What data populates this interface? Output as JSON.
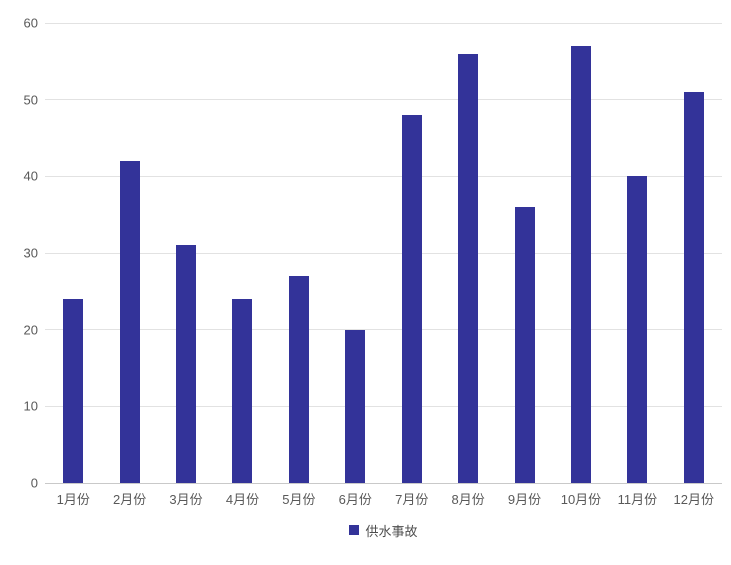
{
  "chart_data": {
    "type": "bar",
    "categories": [
      "1月份",
      "2月份",
      "3月份",
      "4月份",
      "5月份",
      "6月份",
      "7月份",
      "8月份",
      "9月份",
      "10月份",
      "11月份",
      "12月份"
    ],
    "series": [
      {
        "name": "供水事故",
        "values": [
          24,
          42,
          31,
          24,
          27,
          20,
          48,
          56,
          36,
          57,
          40,
          51
        ]
      }
    ],
    "ylim": [
      0,
      60
    ],
    "yticks": [
      0,
      10,
      20,
      30,
      40,
      50,
      60
    ],
    "grid": true,
    "legend_position": "bottom",
    "colors": {
      "bar": "#333399",
      "gridline": "#e2e2e2",
      "axis_line": "#c9c9c9",
      "tick_label": "#595959",
      "legend_text": "#4d4d4d",
      "background": "#ffffff"
    }
  }
}
